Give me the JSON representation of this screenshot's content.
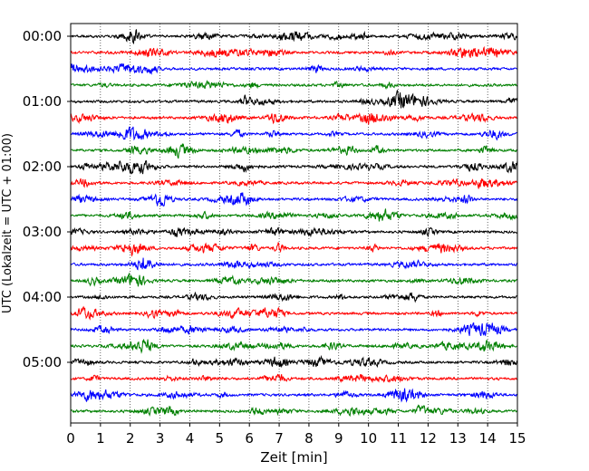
{
  "chart_data": {
    "type": "line",
    "xlabel": "Zeit  [min]",
    "ylabel": "UTC (Lokalzeit = UTC + 01:00)",
    "xlim": [
      0,
      15
    ],
    "xticks": [
      "0",
      "1",
      "2",
      "3",
      "4",
      "5",
      "6",
      "7",
      "8",
      "9",
      "10",
      "11",
      "12",
      "13",
      "14",
      "15"
    ],
    "yticks": [
      "00:00",
      "01:00",
      "02:00",
      "03:00",
      "04:00",
      "05:00"
    ],
    "trace_interval_min": 15,
    "trace_start": "00:00",
    "trace_count": 24,
    "trace_colors": [
      "#000000",
      "#ff0000",
      "#0000ff",
      "#008000"
    ],
    "grid": "vertical dotted at each minute",
    "series_description": "Seismogram helicorder: one 15-minute trace per row, colors cycle black, red, blue, green"
  }
}
